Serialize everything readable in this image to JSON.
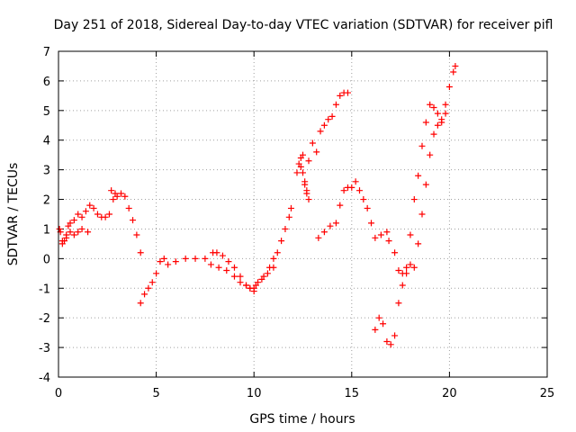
{
  "chart_data": {
    "type": "scatter",
    "title": "Day 251 of 2018, Sidereal Day-to-day VTEC variation (SDTVAR) for receiver pifl",
    "xlabel": "GPS time / hours",
    "ylabel": "SDTVAR / TECUs",
    "xlim": [
      0,
      25
    ],
    "ylim": [
      -4,
      7
    ],
    "xticks": [
      "0",
      "5",
      "10",
      "15",
      "20",
      "25"
    ],
    "yticks": [
      "-4",
      "-3",
      "-2",
      "-1",
      "0",
      "1",
      "2",
      "3",
      "4",
      "5",
      "6",
      "7"
    ],
    "grid": true,
    "marker": "plus",
    "color": "#ff0000",
    "series": [
      {
        "x": [
          0.05,
          0.1,
          0.2,
          0.3,
          0.4,
          0.5,
          0.6,
          0.8,
          1.0,
          1.2,
          1.4,
          1.6,
          1.8,
          2.0,
          2.2,
          2.4,
          2.6,
          2.7,
          2.8,
          2.9,
          3.0,
          3.2,
          3.4,
          3.6,
          3.8,
          4.0,
          4.2
        ],
        "y": [
          1.0,
          0.9,
          0.6,
          0.6,
          0.8,
          1.1,
          1.2,
          1.3,
          1.5,
          1.4,
          1.6,
          1.8,
          1.7,
          1.5,
          1.4,
          1.4,
          1.5,
          2.3,
          2.0,
          2.2,
          2.1,
          2.2,
          2.1,
          1.7,
          1.3,
          0.8,
          0.2
        ]
      },
      {
        "x": [
          0.2,
          0.4,
          0.6,
          0.8,
          1.0,
          1.2,
          1.5
        ],
        "y": [
          0.5,
          0.7,
          0.9,
          0.8,
          0.9,
          1.0,
          0.9
        ]
      },
      {
        "x": [
          4.2,
          4.4,
          4.6,
          4.8,
          5.0,
          5.2,
          5.4,
          5.6,
          6.0,
          6.5,
          7.0,
          7.5,
          7.8,
          8.2,
          8.6,
          9.0,
          9.3,
          9.6,
          9.8,
          10.0
        ],
        "y": [
          -1.5,
          -1.2,
          -1.0,
          -0.8,
          -0.5,
          -0.1,
          0.0,
          -0.2,
          -0.1,
          0.0,
          0.0,
          0.0,
          -0.2,
          -0.3,
          -0.4,
          -0.6,
          -0.8,
          -0.9,
          -1.0,
          -1.1
        ]
      },
      {
        "x": [
          7.9,
          8.1,
          8.4,
          8.7,
          9.0,
          9.3,
          9.6,
          9.8,
          10.1,
          10.4,
          10.7,
          11.0
        ],
        "y": [
          0.2,
          0.2,
          0.1,
          -0.1,
          -0.3,
          -0.6,
          -0.9,
          -1.0,
          -0.9,
          -0.7,
          -0.5,
          -0.3
        ]
      },
      {
        "x": [
          10.0,
          10.2,
          10.5,
          10.8,
          11.0,
          11.2,
          11.4,
          11.6,
          11.8,
          11.9
        ],
        "y": [
          -1.0,
          -0.8,
          -0.6,
          -0.3,
          0.0,
          0.2,
          0.6,
          1.0,
          1.4,
          1.7
        ]
      },
      {
        "x": [
          12.2,
          12.3,
          12.4,
          12.5,
          12.6,
          12.7,
          12.8,
          13.0,
          13.2,
          13.4,
          13.6,
          13.8,
          14.0,
          14.2,
          14.4,
          14.6,
          14.8
        ],
        "y": [
          2.9,
          3.2,
          3.4,
          3.5,
          2.5,
          2.2,
          3.3,
          3.9,
          3.6,
          4.3,
          4.5,
          4.7,
          4.8,
          5.2,
          5.5,
          5.6,
          5.6
        ]
      },
      {
        "x": [
          12.4,
          12.5,
          12.6,
          12.7,
          12.8
        ],
        "y": [
          3.1,
          2.9,
          2.6,
          2.3,
          2.0
        ]
      },
      {
        "x": [
          13.3,
          13.6,
          13.9,
          14.2,
          14.4,
          14.6,
          14.8,
          15.0,
          15.2,
          15.4,
          15.6,
          15.8,
          16.0,
          16.2,
          16.5,
          16.8,
          16.9
        ],
        "y": [
          0.7,
          0.9,
          1.1,
          1.2,
          1.8,
          2.3,
          2.4,
          2.4,
          2.6,
          2.3,
          2.0,
          1.7,
          1.2,
          0.7,
          0.8,
          0.9,
          0.6
        ]
      },
      {
        "x": [
          16.2,
          16.4,
          16.6,
          16.8,
          17.0,
          17.2,
          17.4,
          17.6,
          17.8,
          18.0,
          18.2,
          18.4,
          18.6,
          18.8,
          19.0,
          19.2,
          19.4,
          19.6,
          19.8,
          20.0,
          20.2,
          20.3
        ],
        "y": [
          -2.4,
          -2.0,
          -2.2,
          -2.8,
          -2.9,
          -2.6,
          -1.5,
          -0.5,
          -0.3,
          -0.2,
          -0.3,
          0.5,
          1.5,
          2.5,
          3.5,
          4.2,
          4.5,
          4.6,
          5.2,
          5.8,
          6.3,
          6.5
        ]
      },
      {
        "x": [
          17.2,
          17.4,
          17.6,
          17.8,
          18.0,
          18.2,
          18.4,
          18.6,
          18.8,
          19.0,
          19.2,
          19.4,
          19.6,
          19.8
        ],
        "y": [
          0.2,
          -0.4,
          -0.9,
          -0.5,
          0.8,
          2.0,
          2.8,
          3.8,
          4.6,
          5.2,
          5.1,
          4.9,
          4.7,
          4.9
        ]
      }
    ]
  }
}
